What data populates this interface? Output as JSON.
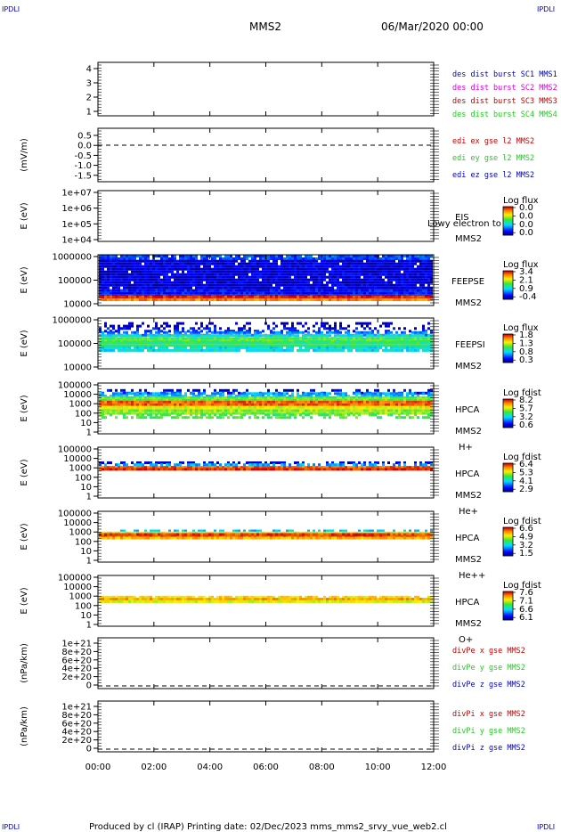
{
  "corner_label": "IPDLI",
  "header": {
    "spacecraft": "MMS2",
    "date": "06/Mar/2020 00:00"
  },
  "footer": {
    "text": "Produced by cl (IRAP)   Printing date: 02/Dec/2023   mms_mms2_srvy_vue_web2.cl"
  },
  "colors": {
    "red": "#cc0000",
    "magenta": "#e000e0",
    "green": "#22cc22",
    "blue": "#0000cc"
  },
  "chart_data": {
    "type": "heatmap",
    "x_ticks": [
      "00:00",
      "02:00",
      "04:00",
      "06:00",
      "08:00",
      "10:00",
      "12:00"
    ],
    "xlim_hours": [
      0,
      12
    ],
    "panels": [
      {
        "id": "des",
        "kind": "lines",
        "yticks": [
          "4",
          "3",
          "2",
          "1"
        ],
        "legend": [
          {
            "text": "des dist burst SC1 MMS1",
            "color": "#0000cc"
          },
          {
            "text": "des dist burst SC2 MMS2",
            "color": "#e000e0"
          },
          {
            "text": "des dist burst SC3 MMS3",
            "color": "#cc0000"
          },
          {
            "text": "des dist burst SC4 MMS4",
            "color": "#22cc22"
          }
        ]
      },
      {
        "id": "edi",
        "kind": "lines",
        "ylabel": "(mV/m)",
        "yticks": [
          "0.5",
          "0.0",
          "-0.5",
          "-1.0",
          "-1.5"
        ],
        "zero_value": 0.0,
        "legend": [
          {
            "text": "edi ex gse l2 MMS2",
            "color": "#cc0000"
          },
          {
            "text": "edi ey gse l2 MMS2",
            "color": "#22cc22"
          },
          {
            "text": "edi ez gse l2 MMS2",
            "color": "#0000cc"
          }
        ]
      },
      {
        "id": "eis",
        "kind": "spectrogram",
        "ylabel": "E (eV)",
        "yticks": [
          "1e+07",
          "1e+06",
          "1e+05",
          "1e+04"
        ],
        "labels": [
          "EIS",
          "MMS2"
        ],
        "overlay": "Lowy electron to",
        "cbar_title": "Log flux",
        "cbar": [
          "0.0",
          "0.0",
          "0.0",
          "0.0"
        ],
        "bands": []
      },
      {
        "id": "feepse",
        "kind": "spectrogram",
        "ylabel": "E (eV)",
        "yticks": [
          "1000000",
          "100000",
          "10000"
        ],
        "labels": [
          "FEEPSE",
          "MMS2"
        ],
        "cbar_title": "Log flux",
        "cbar": [
          "3.4",
          "2.1",
          "0.9",
          "-0.4"
        ],
        "bands": [
          {
            "from": 0.0,
            "to": 0.1,
            "level": 0.2,
            "density": 0.9
          },
          {
            "from": 0.1,
            "to": 0.68,
            "level": 0.08,
            "density": 0.95
          },
          {
            "from": 0.68,
            "to": 0.8,
            "level": 0.14,
            "density": 1.0
          },
          {
            "from": 0.8,
            "to": 0.86,
            "level": 0.97,
            "density": 1.0
          },
          {
            "from": 0.86,
            "to": 0.89,
            "level": 0.85,
            "density": 1.0
          }
        ]
      },
      {
        "id": "feepsi",
        "kind": "spectrogram",
        "ylabel": "E (eV)",
        "yticks": [
          "1000000",
          "100000",
          "10000"
        ],
        "labels": [
          "FEEPSI",
          "MMS2"
        ],
        "cbar_title": "Log flux",
        "cbar": [
          "1.8",
          "1.3",
          "0.8",
          "0.3"
        ],
        "bands": [
          {
            "from": 0.08,
            "to": 0.18,
            "level": 0.05,
            "density": 0.3
          },
          {
            "from": 0.18,
            "to": 0.26,
            "level": 0.12,
            "density": 0.45
          },
          {
            "from": 0.26,
            "to": 0.32,
            "level": 0.25,
            "density": 0.7
          },
          {
            "from": 0.32,
            "to": 0.38,
            "level": 0.4,
            "density": 0.9
          },
          {
            "from": 0.38,
            "to": 0.46,
            "level": 0.55,
            "density": 1.0
          },
          {
            "from": 0.46,
            "to": 0.56,
            "level": 0.5,
            "density": 1.0
          },
          {
            "from": 0.56,
            "to": 0.62,
            "level": 0.38,
            "density": 0.9
          }
        ]
      },
      {
        "id": "hpca_h",
        "kind": "spectrogram",
        "ylabel": "E (eV)",
        "yticks": [
          "100000",
          "10000",
          "1000",
          "100",
          "10",
          "1"
        ],
        "labels": [
          "HPCA",
          "MMS2",
          "H+"
        ],
        "cbar_title": "Log fdist",
        "cbar": [
          "8.2",
          "5.7",
          "3.2",
          "0.6"
        ],
        "bands": [
          {
            "from": 0.12,
            "to": 0.18,
            "level": 0.1,
            "density": 0.35
          },
          {
            "from": 0.18,
            "to": 0.26,
            "level": 0.3,
            "density": 0.75
          },
          {
            "from": 0.26,
            "to": 0.35,
            "level": 0.58,
            "density": 1.0
          },
          {
            "from": 0.35,
            "to": 0.45,
            "level": 0.9,
            "density": 1.0
          },
          {
            "from": 0.45,
            "to": 0.52,
            "level": 0.7,
            "density": 1.0
          },
          {
            "from": 0.52,
            "to": 0.6,
            "level": 0.62,
            "density": 1.0
          },
          {
            "from": 0.6,
            "to": 0.66,
            "level": 0.55,
            "density": 0.5
          }
        ]
      },
      {
        "id": "hpca_he",
        "kind": "spectrogram",
        "ylabel": "E (eV)",
        "yticks": [
          "100000",
          "10000",
          "1000",
          "100",
          "10",
          "1"
        ],
        "labels": [
          "HPCA",
          "MMS2",
          "He+"
        ],
        "cbar_title": "Log fdist",
        "cbar": [
          "6.4",
          "5.3",
          "4.1",
          "2.9"
        ],
        "bands": [
          {
            "from": 0.28,
            "to": 0.32,
            "level": 0.08,
            "density": 0.5
          },
          {
            "from": 0.32,
            "to": 0.37,
            "level": 0.3,
            "density": 0.6
          },
          {
            "from": 0.37,
            "to": 0.41,
            "level": 0.9,
            "density": 1.0
          },
          {
            "from": 0.41,
            "to": 0.46,
            "level": 0.96,
            "density": 1.0
          }
        ]
      },
      {
        "id": "hpca_he2",
        "kind": "spectrogram",
        "ylabel": "E (eV)",
        "yticks": [
          "100000",
          "10000",
          "1000",
          "100",
          "10",
          "1"
        ],
        "labels": [
          "HPCA",
          "MMS2",
          "He++"
        ],
        "cbar_title": "Log fdist",
        "cbar": [
          "6.6",
          "4.9",
          "3.2",
          "1.5"
        ],
        "bands": [
          {
            "from": 0.36,
            "to": 0.4,
            "level": 0.35,
            "density": 0.5
          },
          {
            "from": 0.4,
            "to": 0.43,
            "level": 0.7,
            "density": 1.0
          },
          {
            "from": 0.43,
            "to": 0.5,
            "level": 0.94,
            "density": 1.0
          },
          {
            "from": 0.5,
            "to": 0.54,
            "level": 0.8,
            "density": 1.0
          }
        ]
      },
      {
        "id": "hpca_o",
        "kind": "spectrogram",
        "ylabel": "E (eV)",
        "yticks": [
          "100000",
          "10000",
          "1000",
          "100",
          "10",
          "1"
        ],
        "labels": [
          "HPCA",
          "MMS2",
          "O+"
        ],
        "cbar_title": "Log fdist",
        "cbar": [
          "7.6",
          "7.1",
          "6.6",
          "6.1"
        ],
        "bands": [
          {
            "from": 0.4,
            "to": 0.44,
            "level": 0.75,
            "density": 0.9
          },
          {
            "from": 0.44,
            "to": 0.49,
            "level": 0.82,
            "density": 1.0
          },
          {
            "from": 0.49,
            "to": 0.53,
            "level": 0.7,
            "density": 1.0
          }
        ]
      },
      {
        "id": "divpe",
        "kind": "lines",
        "ylabel": "(nPa/km)",
        "yticks": [
          "1e+21",
          "8e+20",
          "6e+20",
          "4e+20",
          "2e+20",
          "0"
        ],
        "zero_value": 0,
        "legend": [
          {
            "text": "divPe x gse MMS2",
            "color": "#cc0000"
          },
          {
            "text": "divPe y gse MMS2",
            "color": "#22cc22"
          },
          {
            "text": "divPe z gse MMS2",
            "color": "#0000cc"
          }
        ]
      },
      {
        "id": "divpi",
        "kind": "lines",
        "ylabel": "(nPa/km)",
        "yticks": [
          "1e+21",
          "8e+20",
          "6e+20",
          "4e+20",
          "2e+20",
          "0"
        ],
        "zero_value": 0,
        "legend": [
          {
            "text": "divPi x gse MMS2",
            "color": "#cc0000"
          },
          {
            "text": "divPi y gse MMS2",
            "color": "#22cc22"
          },
          {
            "text": "divPi z gse MMS2",
            "color": "#0000cc"
          }
        ]
      }
    ]
  }
}
